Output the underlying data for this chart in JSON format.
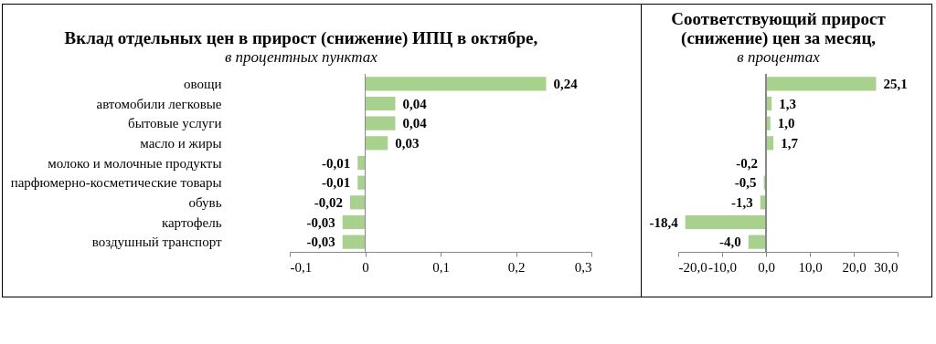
{
  "chart_data": [
    {
      "type": "bar",
      "orientation": "horizontal",
      "title": "Вклад отдельных цен в прирост (снижение) ИПЦ в октябре,",
      "subtitle": "в процентных пунктах",
      "categories": [
        "овощи",
        "автомобили легковые",
        "бытовые услуги",
        "масло и жиры",
        "молоко и молочные продукты",
        "парфюмерно-косметические товары",
        "обувь",
        "картофель",
        "воздушный транспорт"
      ],
      "values": [
        0.24,
        0.04,
        0.04,
        0.03,
        -0.01,
        -0.01,
        -0.02,
        -0.03,
        -0.03
      ],
      "value_labels": [
        "0,24",
        "0,04",
        "0,04",
        "0,03",
        "-0,01",
        "-0,01",
        "-0,02",
        "-0,03",
        "-0,03"
      ],
      "color": "#a9d18e",
      "xlim": [
        -0.1,
        0.3
      ],
      "xticks": [
        {
          "value": -0.1,
          "label": "-0,1"
        },
        0,
        {
          "value": 0.1,
          "label": "0,1"
        },
        {
          "value": 0.2,
          "label": "0,2"
        },
        {
          "value": 0.3,
          "label": "0,3"
        }
      ]
    },
    {
      "type": "bar",
      "orientation": "horizontal",
      "title": "Соответствующий прирост (снижение) цен за месяц,",
      "subtitle": "в процентах",
      "categories": [
        null,
        null,
        null,
        null,
        null,
        null,
        null,
        null,
        null
      ],
      "values": [
        25.1,
        1.3,
        1.0,
        1.7,
        -0.2,
        -0.5,
        -1.3,
        -18.4,
        -4.0
      ],
      "value_labels": [
        "25,1",
        "1,3",
        "1,0",
        "1,7",
        "-0,2",
        "-0,5",
        "-1,3",
        "-18,4",
        "-4,0"
      ],
      "color": "#a9d18e",
      "xlim": [
        -20,
        30
      ],
      "xticks": [
        {
          "value": -20,
          "label": "-20,0"
        },
        {
          "value": -10,
          "label": "-10,0"
        },
        {
          "value": 0,
          "label": "0,0"
        },
        {
          "value": 10,
          "label": "10,0"
        },
        {
          "value": 20,
          "label": "20,0"
        },
        {
          "value": 30,
          "label": "30,0"
        }
      ],
      "tick_labels": "x"
    }
  ]
}
